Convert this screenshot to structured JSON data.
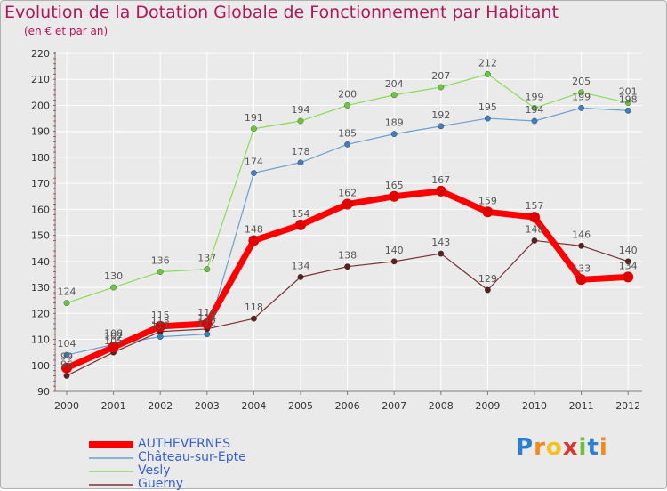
{
  "title": "Evolution de la Dotation Globale de Fonctionnement par Habitant",
  "subtitle": "(en € et par an)",
  "colors": {
    "title": "#b2165c",
    "axis": "#7a7a7a",
    "grid": "#ffffff"
  },
  "chart_data": {
    "type": "line",
    "title": "Evolution de la Dotation Globale de Fonctionnement par Habitant",
    "subtitle": "(en € et par an)",
    "xlabel": "",
    "ylabel": "",
    "x": [
      "2000",
      "2001",
      "2002",
      "2003",
      "2004",
      "2005",
      "2006",
      "2007",
      "2008",
      "2009",
      "2010",
      "2011",
      "2012"
    ],
    "ylim": [
      90,
      220
    ],
    "yticks": [
      "90",
      "100",
      "110",
      "120",
      "130",
      "140",
      "150",
      "160",
      "170",
      "180",
      "190",
      "200",
      "210",
      "220"
    ],
    "grid": true,
    "legend": "bottom-left",
    "series": [
      {
        "name": "AUTHEVERNES",
        "color": "#ff0000",
        "marker": "#e00000",
        "labelColor": "#555555",
        "values": [
          99,
          107,
          115,
          116,
          148,
          154,
          162,
          165,
          167,
          159,
          157,
          133,
          134
        ],
        "labels": [
          "99",
          "107",
          "115",
          "116",
          "148",
          "154",
          "162",
          "165",
          "167",
          "159",
          "157",
          "133",
          "134"
        ]
      },
      {
        "name": "Château-sur-Epte",
        "color": "#6a9fd0",
        "marker": "#3f7fc0",
        "labelColor": "#555555",
        "values": [
          104,
          108,
          111,
          112,
          174,
          178,
          185,
          189,
          192,
          195,
          194,
          199,
          198
        ],
        "labels": [
          "104",
          "108",
          "111",
          "112",
          "174",
          "178",
          "185",
          "189",
          "192",
          "195",
          "194",
          "199",
          "198"
        ]
      },
      {
        "name": "Vesly",
        "color": "#88dd55",
        "marker": "#6cc83c",
        "labelColor": "#555555",
        "values": [
          124,
          130,
          136,
          137,
          191,
          194,
          200,
          204,
          207,
          212,
          199,
          205,
          201
        ],
        "labels": [
          "124",
          "130",
          "136",
          "137",
          "191",
          "194",
          "200",
          "204",
          "207",
          "212",
          "199",
          "205",
          "201"
        ]
      },
      {
        "name": "Guerny",
        "color": "#7a3333",
        "marker": "#5a1f1f",
        "labelColor": "#555555",
        "values": [
          96,
          105,
          113,
          114,
          118,
          134,
          138,
          140,
          143,
          129,
          148,
          146,
          140
        ],
        "labels": [
          "96",
          "105",
          "113",
          "114",
          "118",
          "134",
          "138",
          "140",
          "143",
          "129",
          "148",
          "146",
          "140"
        ]
      }
    ]
  },
  "logo": {
    "letters": [
      "P",
      "r",
      "o",
      "x",
      "i",
      "t",
      "i"
    ],
    "colors": [
      "#2a7fd4",
      "#f08a1c",
      "#f4c21d",
      "#d43a2f",
      "#6fbf3a",
      "#2a7fd4",
      "#f08a1c"
    ]
  }
}
